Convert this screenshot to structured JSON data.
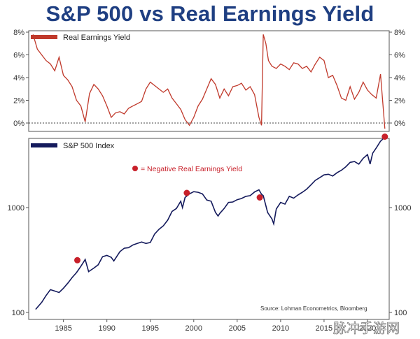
{
  "chart_data": [
    {
      "type": "line",
      "title": "S&P 500 vs Real Earnings Yield",
      "series": [
        {
          "name": "Real Earnings Yield",
          "color": "#c0392b",
          "x": [
            1981.5,
            1982.0,
            1982.5,
            1983.0,
            1983.5,
            1984.0,
            1984.5,
            1985.0,
            1985.5,
            1986.0,
            1986.5,
            1987.0,
            1987.5,
            1988.0,
            1988.5,
            1989.0,
            1989.5,
            1990.0,
            1990.5,
            1991.0,
            1991.5,
            1992.0,
            1992.5,
            1993.0,
            1993.5,
            1994.0,
            1994.5,
            1995.0,
            1995.5,
            1996.0,
            1996.5,
            1997.0,
            1997.5,
            1998.0,
            1998.5,
            1999.0,
            1999.5,
            2000.0,
            2000.5,
            2001.0,
            2001.5,
            2002.0,
            2002.5,
            2003.0,
            2003.5,
            2004.0,
            2004.5,
            2005.0,
            2005.5,
            2006.0,
            2006.5,
            2007.0,
            2007.5,
            2007.8,
            2008.0,
            2008.3,
            2008.6,
            2009.0,
            2009.5,
            2010.0,
            2010.5,
            2011.0,
            2011.5,
            2012.0,
            2012.5,
            2013.0,
            2013.5,
            2014.0,
            2014.5,
            2015.0,
            2015.5,
            2016.0,
            2016.5,
            2017.0,
            2017.5,
            2018.0,
            2018.5,
            2019.0,
            2019.5,
            2020.0,
            2020.5,
            2021.0,
            2021.5,
            2022.0
          ],
          "values": [
            7.8,
            6.5,
            6.0,
            5.5,
            5.2,
            4.6,
            5.8,
            4.2,
            3.8,
            3.2,
            2.0,
            1.5,
            0.1,
            2.6,
            3.4,
            3.0,
            2.4,
            1.5,
            0.5,
            0.9,
            1.0,
            0.8,
            1.3,
            1.5,
            1.7,
            1.9,
            3.0,
            3.6,
            3.3,
            3.0,
            2.7,
            3.0,
            2.2,
            1.7,
            1.2,
            0.3,
            -0.2,
            0.5,
            1.5,
            2.1,
            3.0,
            3.9,
            3.4,
            2.2,
            3.0,
            2.4,
            3.2,
            3.3,
            3.5,
            2.9,
            3.2,
            2.5,
            0.5,
            -0.2,
            7.8,
            7.0,
            5.5,
            5.0,
            4.8,
            5.2,
            5.0,
            4.7,
            5.3,
            5.2,
            4.8,
            5.0,
            4.5,
            5.2,
            5.8,
            5.5,
            4.0,
            4.2,
            3.3,
            2.2,
            2.0,
            3.2,
            2.1,
            2.7,
            3.6,
            2.9,
            2.5,
            2.2,
            4.3,
            -0.5
          ]
        }
      ],
      "ylim": [
        -0.5,
        8
      ],
      "y_ticks": [
        "0%",
        "2%",
        "4%",
        "6%",
        "8%"
      ],
      "reference_line": 0
    },
    {
      "type": "line",
      "log_scale": true,
      "series": [
        {
          "name": "S&P 500 Index",
          "color": "#141a5c",
          "x": [
            1981.8,
            1982.5,
            1983.0,
            1983.5,
            1984.0,
            1984.5,
            1985.0,
            1985.5,
            1986.0,
            1986.5,
            1987.0,
            1987.5,
            1987.9,
            1988.5,
            1989.0,
            1989.5,
            1990.0,
            1990.5,
            1990.8,
            1991.5,
            1992.0,
            1992.5,
            1993.0,
            1993.5,
            1994.0,
            1994.5,
            1995.0,
            1995.5,
            1996.0,
            1996.5,
            1997.0,
            1997.5,
            1998.0,
            1998.5,
            1998.7,
            1999.0,
            1999.5,
            2000.0,
            2000.5,
            2001.0,
            2001.5,
            2002.0,
            2002.5,
            2002.8,
            2003.0,
            2003.5,
            2004.0,
            2004.5,
            2005.0,
            2005.5,
            2006.0,
            2006.5,
            2007.0,
            2007.5,
            2007.8,
            2008.0,
            2008.5,
            2009.0,
            2009.2,
            2009.5,
            2010.0,
            2010.5,
            2011.0,
            2011.5,
            2012.0,
            2012.5,
            2013.0,
            2013.5,
            2014.0,
            2014.5,
            2015.0,
            2015.5,
            2016.0,
            2016.5,
            2017.0,
            2017.5,
            2018.0,
            2018.5,
            2019.0,
            2019.5,
            2020.0,
            2020.3,
            2020.6,
            2021.0,
            2021.5,
            2022.0
          ],
          "values": [
            107,
            125,
            145,
            165,
            160,
            155,
            170,
            190,
            215,
            240,
            275,
            320,
            245,
            265,
            285,
            340,
            350,
            335,
            310,
            380,
            410,
            415,
            440,
            455,
            470,
            455,
            465,
            560,
            620,
            670,
            760,
            920,
            980,
            1150,
            1000,
            1250,
            1350,
            1420,
            1400,
            1350,
            1180,
            1150,
            900,
            830,
            880,
            980,
            1120,
            1130,
            1190,
            1220,
            1280,
            1300,
            1410,
            1480,
            1340,
            1300,
            900,
            780,
            700,
            970,
            1120,
            1080,
            1280,
            1230,
            1320,
            1400,
            1500,
            1650,
            1820,
            1930,
            2050,
            2080,
            2000,
            2150,
            2270,
            2450,
            2700,
            2750,
            2600,
            2950,
            3200,
            2600,
            3300,
            3700,
            4300,
            4700
          ]
        }
      ],
      "highlighted_points": [
        {
          "x": 1986.6,
          "y": 315
        },
        {
          "x": 1999.2,
          "y": 1380
        },
        {
          "x": 2007.6,
          "y": 1250
        },
        {
          "x": 2022.0,
          "y": 4750
        }
      ],
      "y_ticks": [
        "100",
        "1000"
      ],
      "xlim": [
        1981,
        2022.5
      ],
      "x_ticks": [
        "1985",
        "1990",
        "1995",
        "2000",
        "2005",
        "2010",
        "2015",
        "2020"
      ],
      "annotation": "= Negative Real Earnings Yield",
      "source": "Source: Lohman Econometrics, Bloomberg"
    }
  ],
  "colors": {
    "title": "#1f3f82",
    "yield_line": "#c0392b",
    "index_line": "#141a5c",
    "marker": "#c8202a"
  },
  "watermark": "脉冲手游网"
}
